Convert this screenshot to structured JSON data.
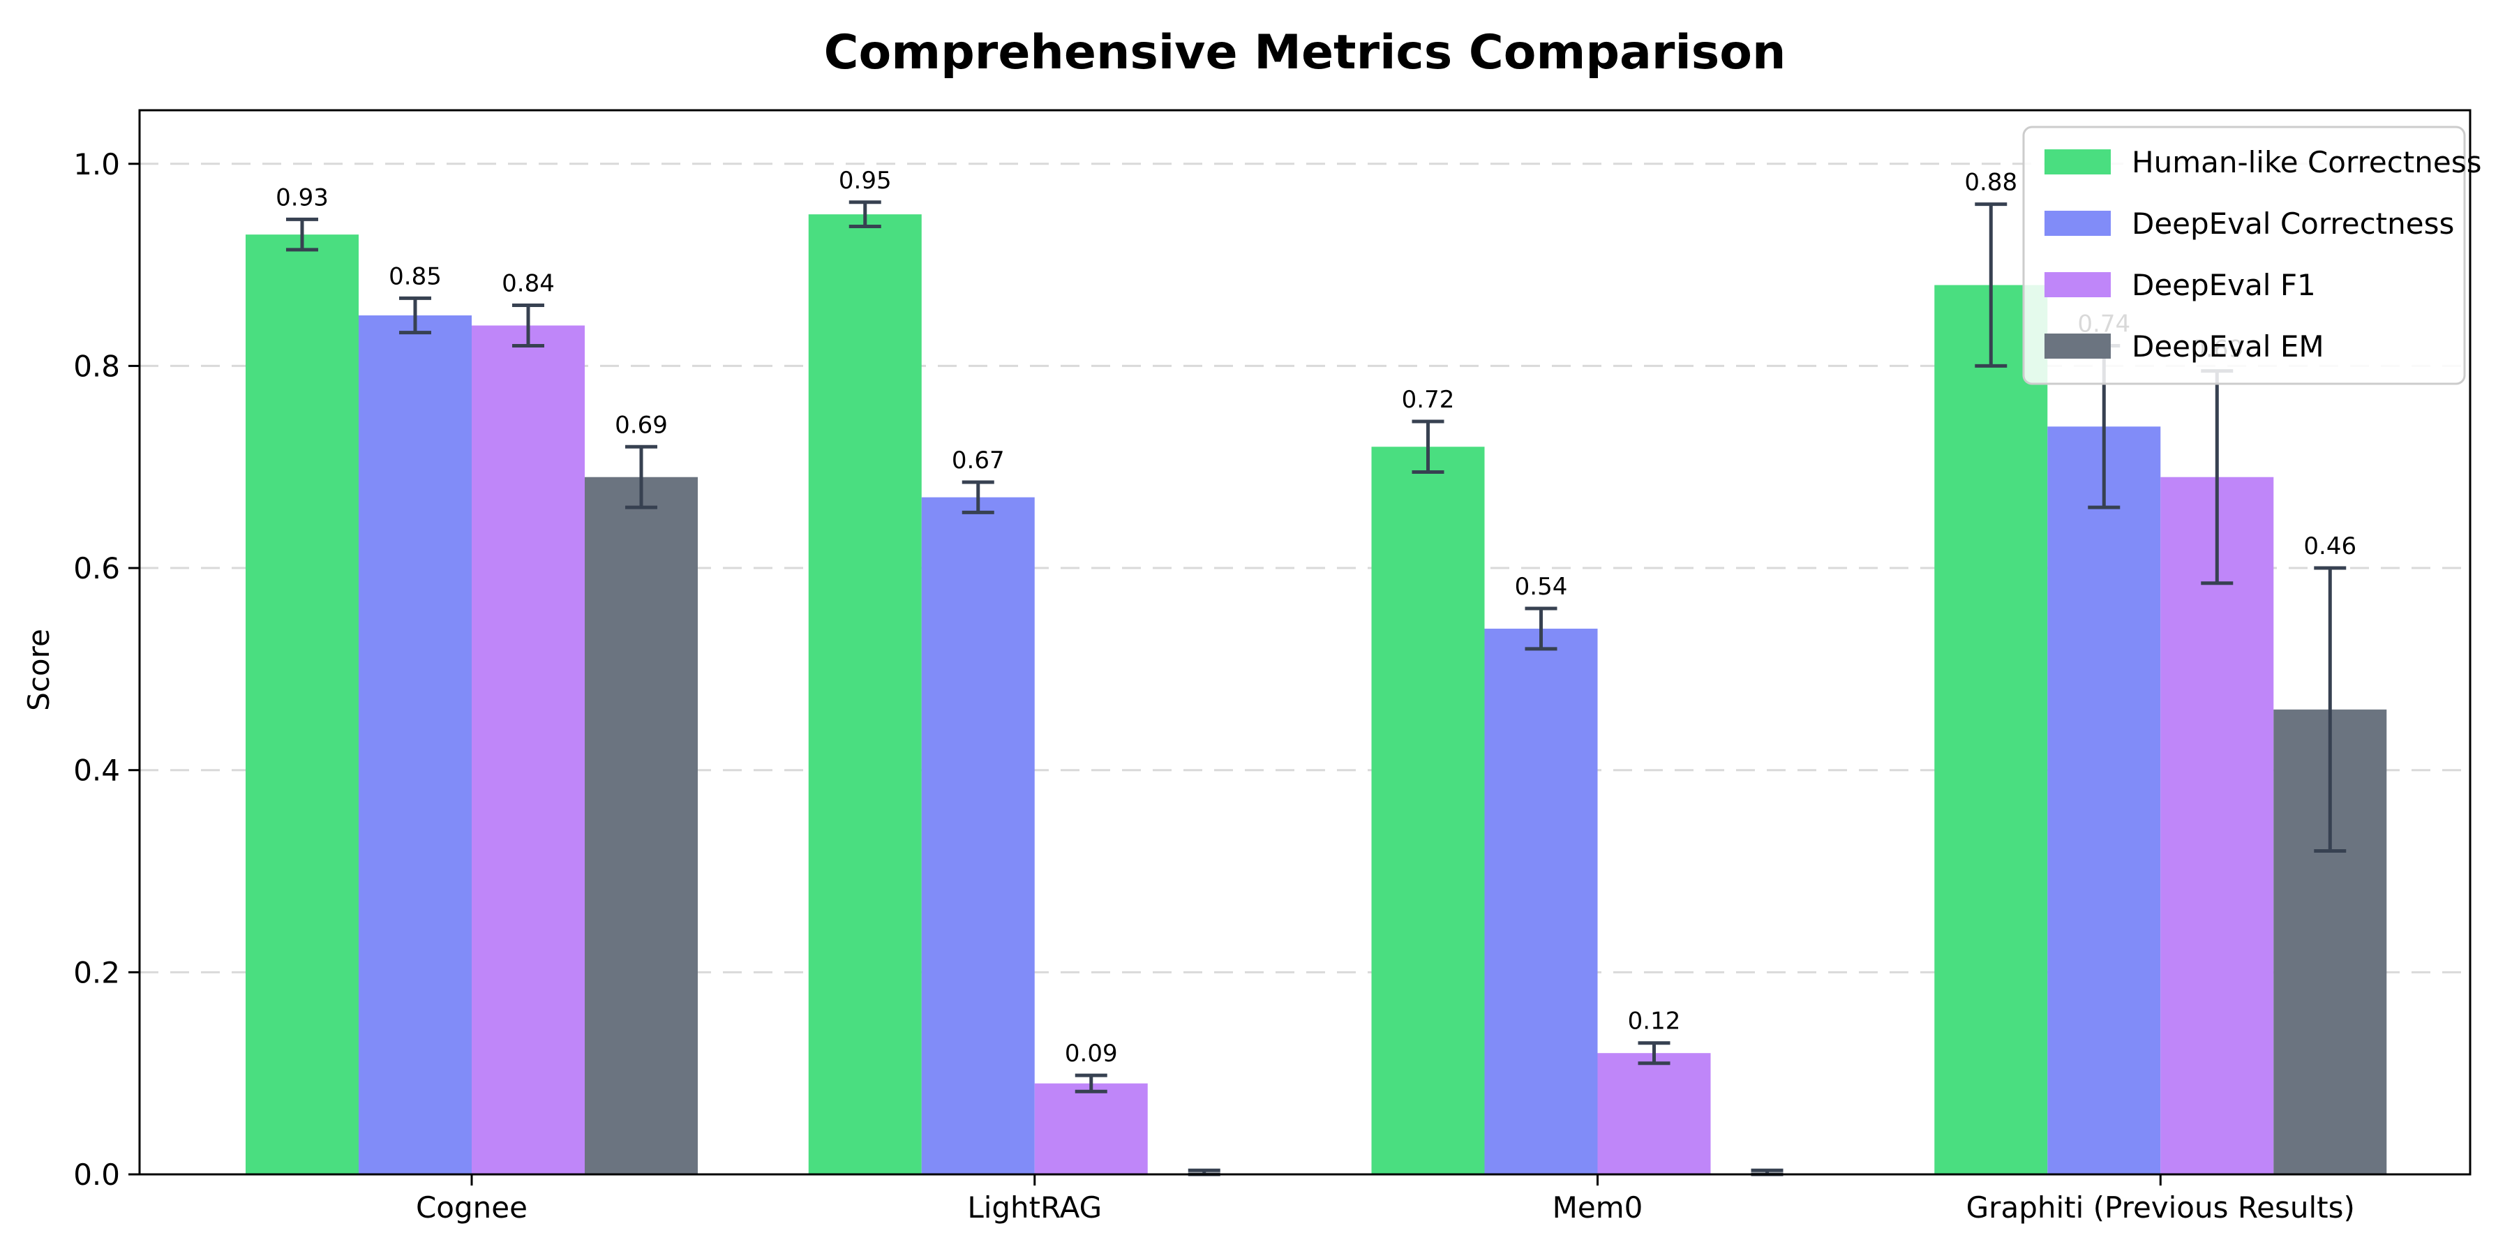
{
  "chart_data": {
    "type": "bar",
    "title": "Comprehensive Metrics Comparison",
    "xlabel": "",
    "ylabel": "Score",
    "categories": [
      "Cognee",
      "LightRAG",
      "Mem0",
      "Graphiti (Previous Results)"
    ],
    "series": [
      {
        "name": "Human-like Correctness",
        "color": "#4ade80",
        "values": [
          0.93,
          0.95,
          0.72,
          0.88
        ],
        "errors": [
          0.015,
          0.012,
          0.025,
          0.08
        ],
        "value_labels": [
          "0.93",
          "0.95",
          "0.72",
          "0.88"
        ]
      },
      {
        "name": "DeepEval Correctness",
        "color": "#818cf8",
        "values": [
          0.85,
          0.67,
          0.54,
          0.74
        ],
        "errors": [
          0.017,
          0.015,
          0.02,
          0.08
        ],
        "value_labels": [
          "0.85",
          "0.67",
          "0.54",
          "0.74"
        ]
      },
      {
        "name": "DeepEval F1",
        "color": "#bf86f9",
        "values": [
          0.84,
          0.09,
          0.12,
          0.69
        ],
        "errors": [
          0.02,
          0.008,
          0.01,
          0.105
        ],
        "value_labels": [
          "0.84",
          "0.09",
          "0.12",
          "0.69"
        ]
      },
      {
        "name": "DeepEval EM",
        "color": "#6b7480",
        "values": [
          0.69,
          0.0,
          0.0,
          0.46
        ],
        "errors": [
          0.03,
          0.004,
          0.004,
          0.14
        ],
        "value_labels": [
          "0.69",
          "",
          "",
          "0.46"
        ]
      }
    ],
    "ytick_labels": [
      "0.0",
      "0.2",
      "0.4",
      "0.6",
      "0.8",
      "1.0"
    ],
    "yticks": [
      0.0,
      0.2,
      0.4,
      0.6,
      0.8,
      1.0
    ],
    "ylim": [
      0,
      1.053
    ],
    "grid": "dashed-horizontal",
    "gridline_color": "#d9d9d9",
    "legend_position": "upper right",
    "error_bar_color": "#374151",
    "axis_color": "#000000"
  }
}
